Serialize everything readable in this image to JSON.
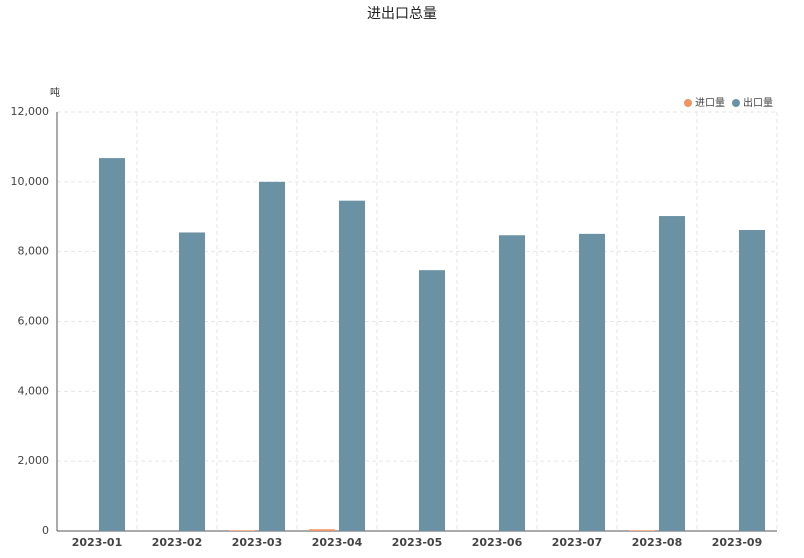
{
  "chart_data": {
    "type": "bar",
    "title": "进出口总量",
    "y_label": "吨",
    "categories": [
      "2023-01",
      "2023-02",
      "2023-03",
      "2023-04",
      "2023-05",
      "2023-06",
      "2023-07",
      "2023-08",
      "2023-09"
    ],
    "series": [
      {
        "name": "进口量",
        "color": "#ef9563",
        "values": [
          0,
          0,
          20,
          50,
          0,
          0,
          0,
          20,
          0
        ]
      },
      {
        "name": "出口量",
        "color": "#6b91a5",
        "values": [
          10680,
          8550,
          10000,
          9460,
          7470,
          8470,
          8510,
          9020,
          8620
        ]
      }
    ],
    "ylim": [
      0,
      12000
    ],
    "yticks": [
      0,
      {
        "value": 2000,
        "label": "2,000"
      },
      {
        "value": 4000,
        "label": "4,000"
      },
      {
        "value": 6000,
        "label": "6,000"
      },
      {
        "value": 8000,
        "label": "8,000"
      },
      {
        "value": 10000,
        "label": "10,000"
      },
      {
        "value": 12000,
        "label": "12,000"
      }
    ],
    "grid": true,
    "legend": "top-right"
  }
}
